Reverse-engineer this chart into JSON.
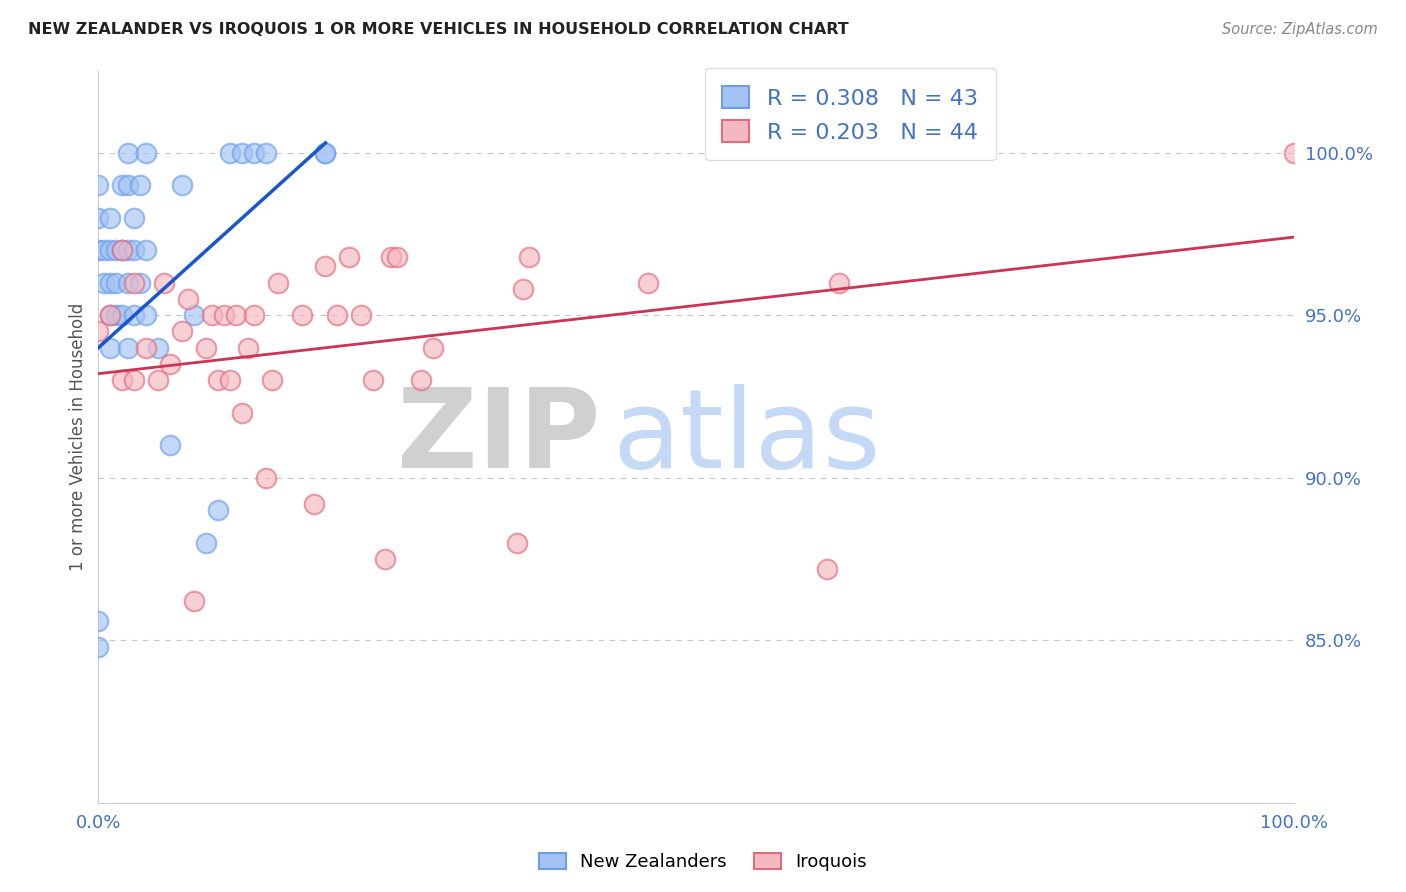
{
  "title": "NEW ZEALANDER VS IROQUOIS 1 OR MORE VEHICLES IN HOUSEHOLD CORRELATION CHART",
  "source": "Source: ZipAtlas.com",
  "ylabel": "1 or more Vehicles in Household",
  "xmin": 0.0,
  "xmax": 1.0,
  "ymin": 0.8,
  "ymax": 1.025,
  "yticks": [
    0.85,
    0.9,
    0.95,
    1.0
  ],
  "ytick_labels": [
    "85.0%",
    "90.0%",
    "95.0%",
    "100.0%"
  ],
  "blue_R": 0.308,
  "blue_N": 43,
  "pink_R": 0.203,
  "pink_N": 44,
  "blue_color": "#a4c2f4",
  "pink_color": "#f4b8c1",
  "blue_edge_color": "#6d9eeb",
  "pink_edge_color": "#e06c7d",
  "blue_line_color": "#1a56cc",
  "pink_line_color": "#cc3355",
  "grid_color": "#b0b0b0",
  "axis_color": "#4472c4",
  "title_color": "#222222",
  "watermark_zip_color": "#d0d0d0",
  "watermark_atlas_color": "#c5d8f5",
  "background_color": "#ffffff",
  "legend_blue_label": "New Zealanders",
  "legend_pink_label": "Iroquois",
  "blue_points_x": [
    0.0,
    0.0,
    0.0,
    0.0,
    0.0,
    0.005,
    0.005,
    0.01,
    0.01,
    0.01,
    0.01,
    0.01,
    0.015,
    0.015,
    0.015,
    0.02,
    0.02,
    0.02,
    0.025,
    0.025,
    0.025,
    0.025,
    0.025,
    0.03,
    0.03,
    0.03,
    0.035,
    0.035,
    0.04,
    0.04,
    0.04,
    0.05,
    0.06,
    0.07,
    0.08,
    0.09,
    0.1,
    0.11,
    0.12,
    0.13,
    0.14,
    0.19,
    0.19
  ],
  "blue_points_y": [
    0.848,
    0.856,
    0.97,
    0.98,
    0.99,
    0.96,
    0.97,
    0.94,
    0.95,
    0.96,
    0.97,
    0.98,
    0.95,
    0.96,
    0.97,
    0.95,
    0.97,
    0.99,
    0.94,
    0.96,
    0.97,
    0.99,
    1.0,
    0.95,
    0.97,
    0.98,
    0.96,
    0.99,
    0.95,
    0.97,
    1.0,
    0.94,
    0.91,
    0.99,
    0.95,
    0.88,
    0.89,
    1.0,
    1.0,
    1.0,
    1.0,
    1.0,
    1.0
  ],
  "pink_points_x": [
    0.0,
    0.01,
    0.02,
    0.02,
    0.03,
    0.03,
    0.04,
    0.05,
    0.055,
    0.06,
    0.07,
    0.075,
    0.08,
    0.09,
    0.095,
    0.1,
    0.105,
    0.11,
    0.115,
    0.12,
    0.125,
    0.13,
    0.14,
    0.145,
    0.15,
    0.17,
    0.18,
    0.19,
    0.2,
    0.21,
    0.22,
    0.23,
    0.24,
    0.245,
    0.25,
    0.27,
    0.28,
    0.35,
    0.355,
    0.36,
    0.46,
    0.61,
    0.62,
    1.0
  ],
  "pink_points_y": [
    0.945,
    0.95,
    0.93,
    0.97,
    0.93,
    0.96,
    0.94,
    0.93,
    0.96,
    0.935,
    0.945,
    0.955,
    0.862,
    0.94,
    0.95,
    0.93,
    0.95,
    0.93,
    0.95,
    0.92,
    0.94,
    0.95,
    0.9,
    0.93,
    0.96,
    0.95,
    0.892,
    0.965,
    0.95,
    0.968,
    0.95,
    0.93,
    0.875,
    0.968,
    0.968,
    0.93,
    0.94,
    0.88,
    0.958,
    0.968,
    0.96,
    0.872,
    0.96,
    1.0
  ],
  "blue_line_x": [
    0.0,
    0.19
  ],
  "blue_line_y": [
    0.94,
    1.003
  ],
  "pink_line_x": [
    0.0,
    1.0
  ],
  "pink_line_y": [
    0.932,
    0.974
  ]
}
